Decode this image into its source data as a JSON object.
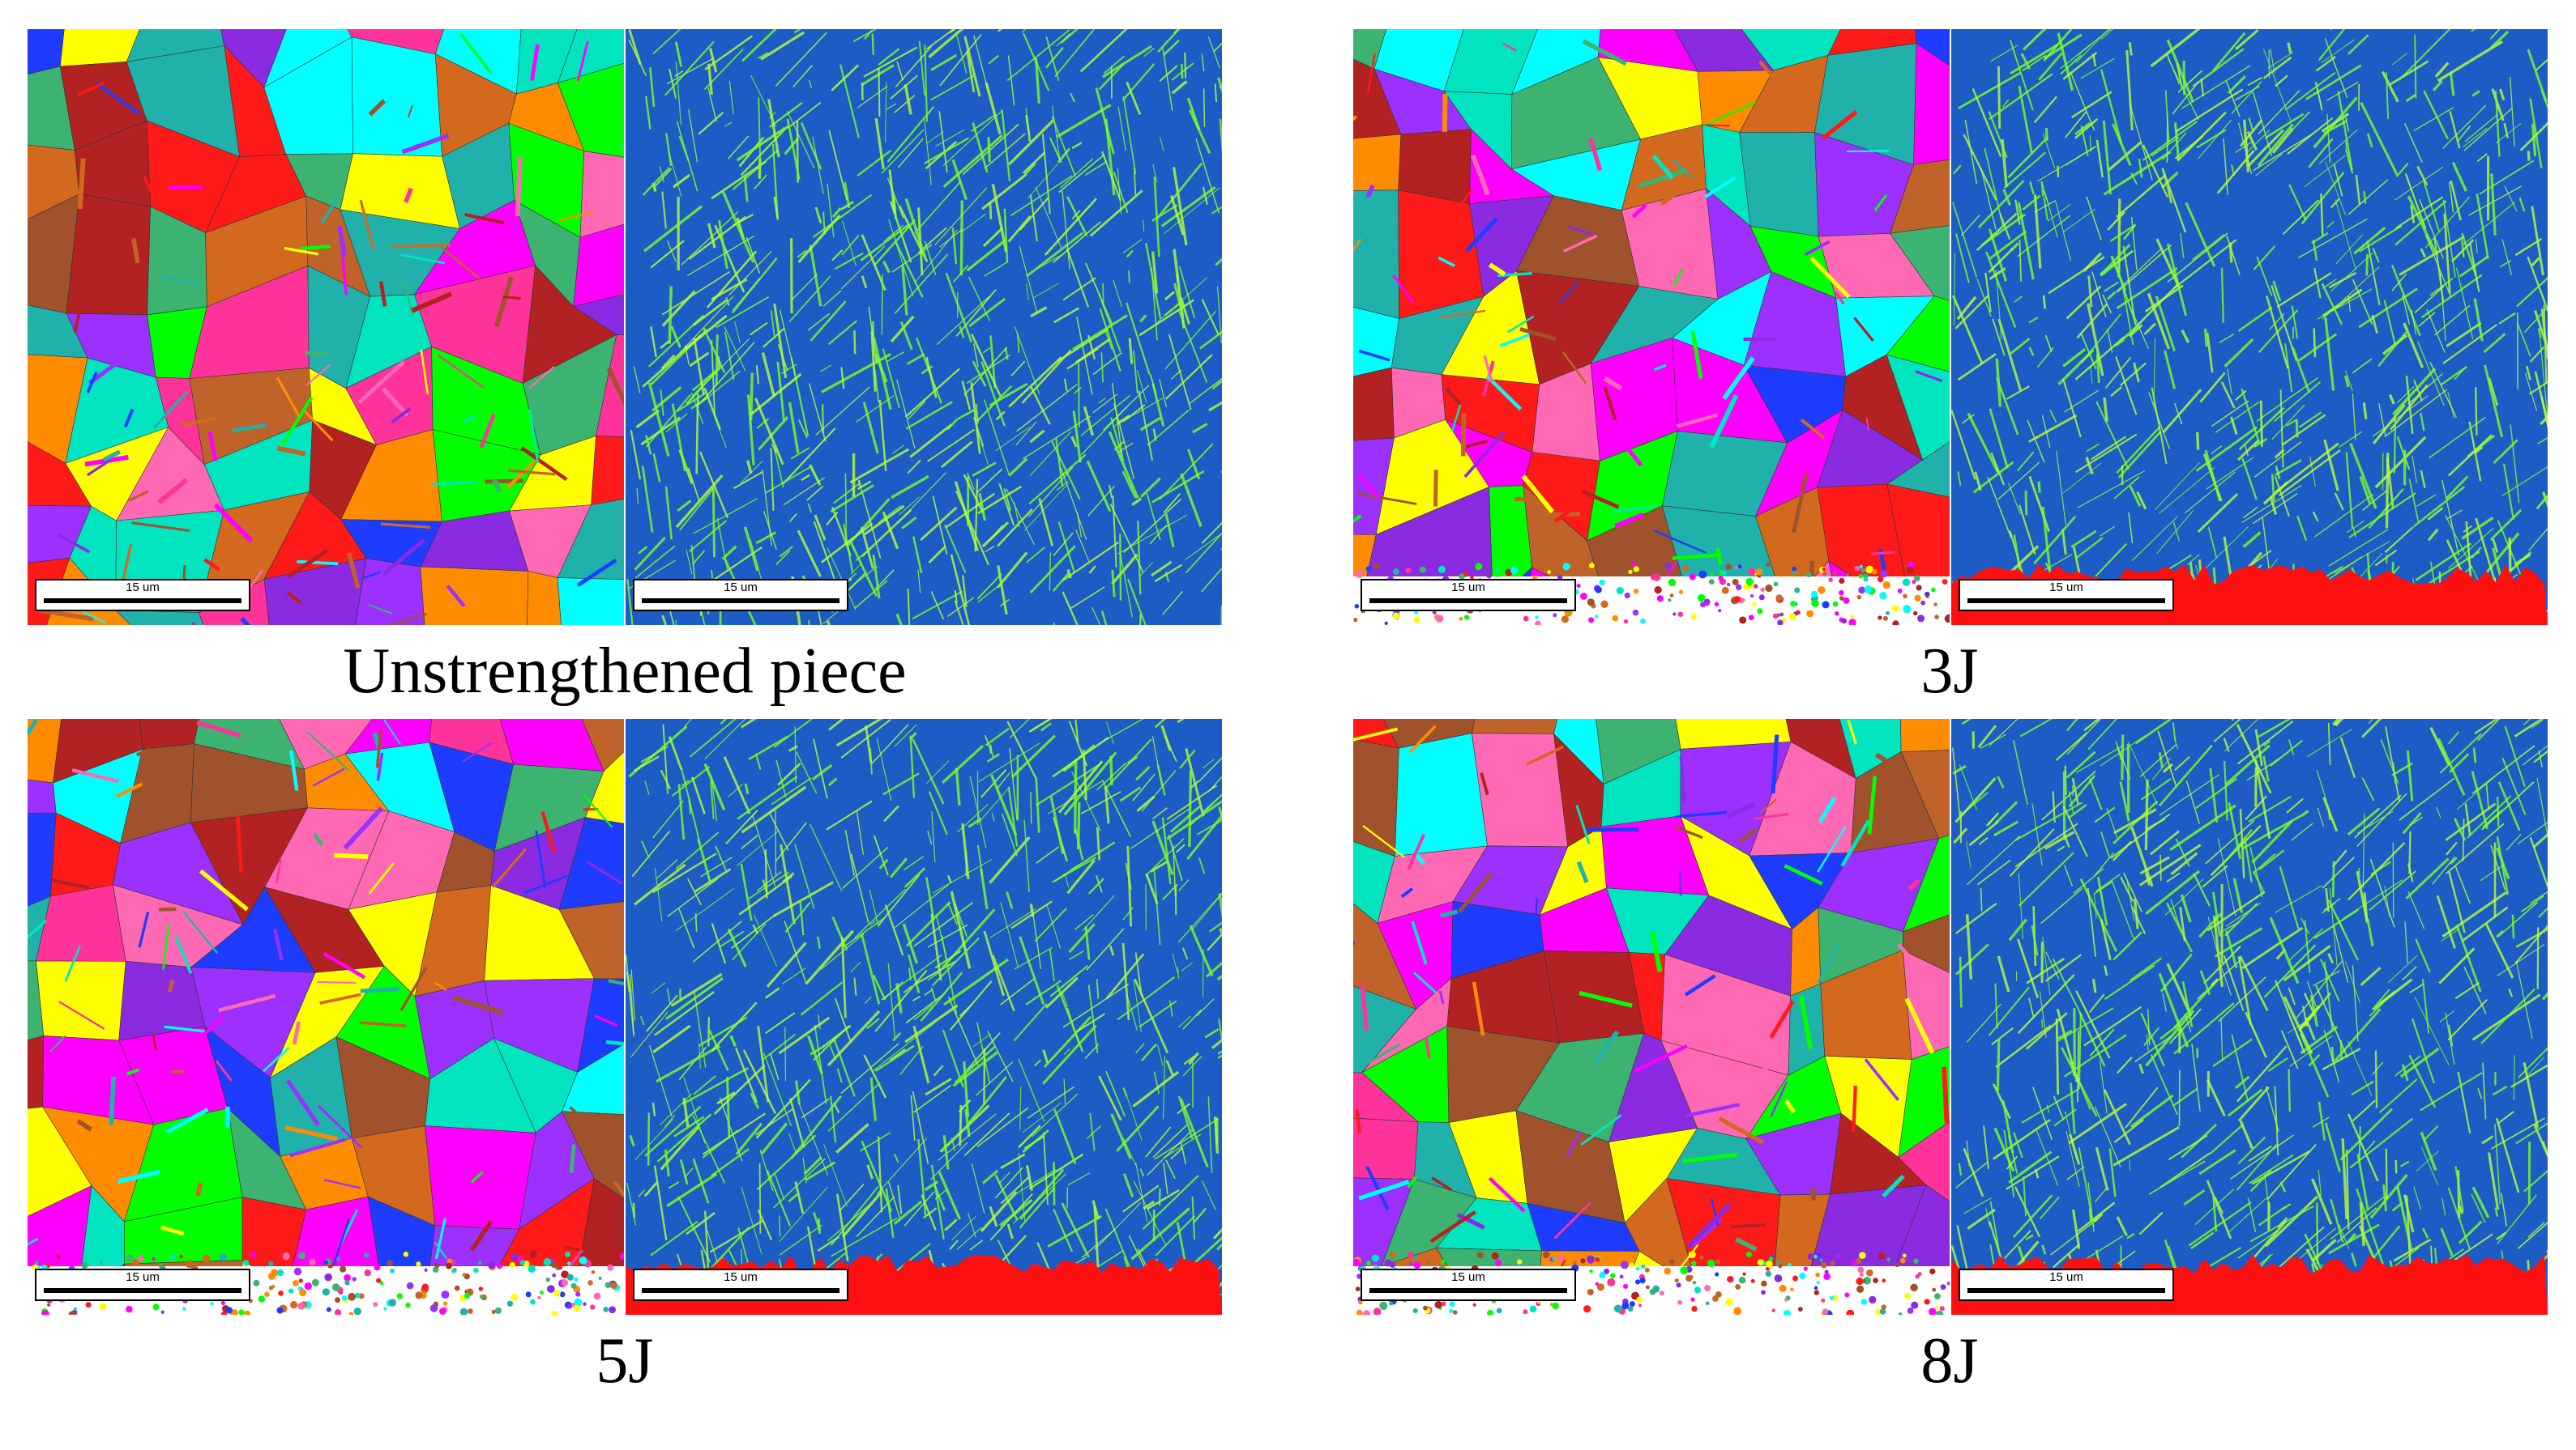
{
  "figure": {
    "panels": [
      {
        "caption": "Unstrengthened piece",
        "scale_bars": [
          "15 um",
          "15 um"
        ]
      },
      {
        "caption": "3J",
        "scale_bars": [
          "15 um",
          "15 um"
        ]
      },
      {
        "caption": "5J",
        "scale_bars": [
          "15 um",
          "15 um"
        ]
      },
      {
        "caption": "8J",
        "scale_bars": [
          "15 um",
          "15 um"
        ]
      }
    ]
  }
}
